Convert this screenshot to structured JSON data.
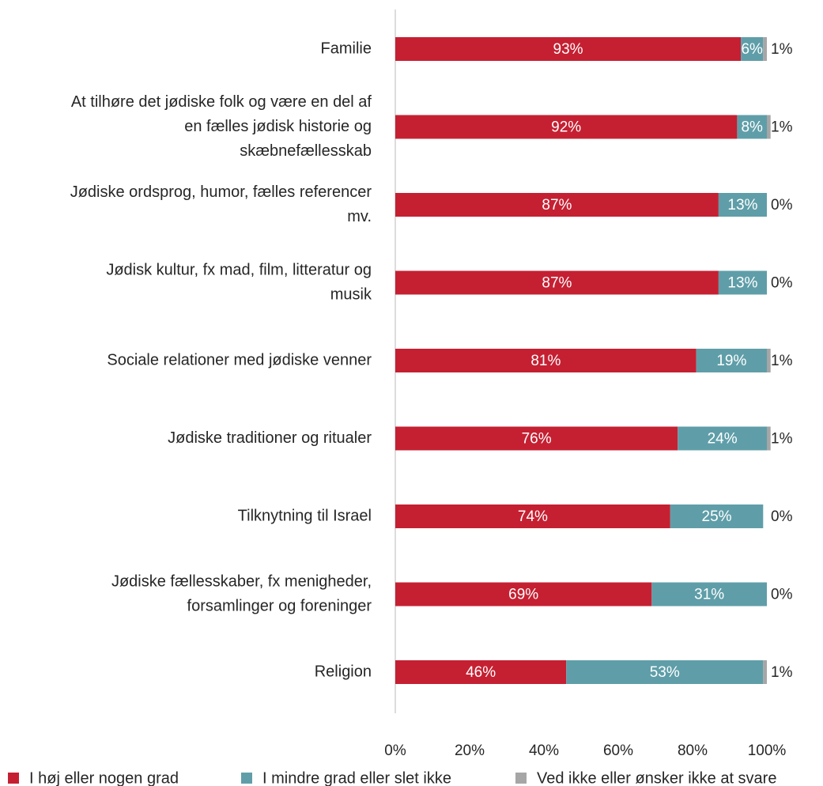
{
  "chart_data": {
    "type": "bar",
    "orientation": "horizontal",
    "stacked": true,
    "title": "",
    "xlabel": "",
    "ylabel": "",
    "xlim": [
      0,
      100
    ],
    "x_ticks": [
      0,
      20,
      40,
      60,
      80,
      100
    ],
    "x_tick_labels": [
      "0%",
      "20%",
      "40%",
      "60%",
      "80%",
      "100%"
    ],
    "grid": false,
    "legend_position": "bottom",
    "categories": [
      [
        "Familie"
      ],
      [
        "At tilhøre det jødiske folk og være en del af",
        "en fælles jødisk historie og",
        "skæbnefællesskab"
      ],
      [
        "Jødiske ordsprog, humor, fælles referencer",
        "mv."
      ],
      [
        "Jødisk kultur, fx mad, film, litteratur og",
        "musik"
      ],
      [
        "Sociale relationer med jødiske venner"
      ],
      [
        "Jødiske traditioner og ritualer"
      ],
      [
        "Tilknytning til Israel"
      ],
      [
        "Jødiske fællesskaber, fx menigheder,",
        "forsamlinger og foreninger"
      ],
      [
        "Religion"
      ]
    ],
    "series": [
      {
        "name": "I høj eller nogen grad",
        "color": "#c52032",
        "values": [
          93,
          92,
          87,
          87,
          81,
          76,
          74,
          69,
          46
        ],
        "labels": [
          "93%",
          "92%",
          "87%",
          "87%",
          "81%",
          "76%",
          "74%",
          "69%",
          "46%"
        ]
      },
      {
        "name": "I mindre grad eller slet ikke",
        "color": "#5f9ea8",
        "values": [
          6,
          8,
          13,
          13,
          19,
          24,
          25,
          31,
          53
        ],
        "labels": [
          "6%",
          "8%",
          "13%",
          "13%",
          "19%",
          "24%",
          "25%",
          "31%",
          "53%"
        ]
      },
      {
        "name": "Ved ikke eller ønsker ikke at svare",
        "color": "#a6a6a6",
        "values": [
          1,
          1,
          0,
          0,
          1,
          1,
          0,
          0,
          1
        ],
        "labels": [
          "1%",
          "1%",
          "0%",
          "0%",
          "1%",
          "1%",
          "0%",
          "0%",
          "1%"
        ]
      }
    ]
  }
}
